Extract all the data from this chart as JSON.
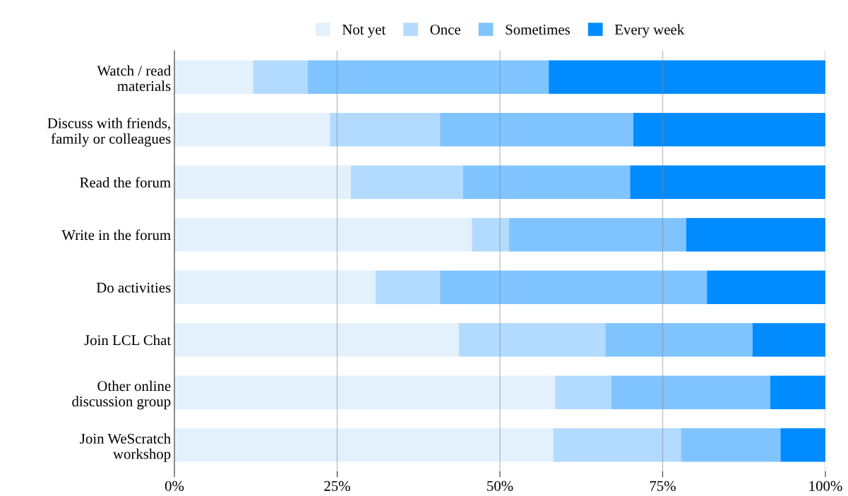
{
  "chart_data": {
    "type": "bar",
    "orientation": "horizontal",
    "stacked": true,
    "categories": [
      "Watch / read\nmaterials",
      "Discuss with friends,\nfamily or colleagues",
      "Read the forum",
      "Write in the forum",
      "Do activities",
      "Join LCL Chat",
      "Other online\ndiscussion group",
      "Join WeScratch\nworkshop"
    ],
    "series": [
      {
        "name": "Not yet",
        "color": "#e3f1fd",
        "values": [
          12.1,
          23.9,
          27.1,
          45.7,
          30.9,
          43.7,
          58.5,
          58.2
        ]
      },
      {
        "name": "Once",
        "color": "#b3dbff",
        "values": [
          8.4,
          16.9,
          17.2,
          5.7,
          9.9,
          22.5,
          8.6,
          19.6
        ]
      },
      {
        "name": "Sometimes",
        "color": "#80c4ff",
        "values": [
          37.0,
          29.7,
          25.7,
          27.2,
          41.0,
          22.6,
          24.4,
          15.3
        ]
      },
      {
        "name": "Every week",
        "color": "#008cff",
        "values": [
          42.5,
          29.5,
          30.0,
          21.4,
          18.2,
          11.2,
          8.5,
          6.9
        ]
      }
    ],
    "xlim": [
      0,
      100
    ],
    "xticks": [
      {
        "value": 0,
        "label": "0%"
      },
      {
        "value": 25,
        "label": "25%"
      },
      {
        "value": 50,
        "label": "50%"
      },
      {
        "value": 75,
        "label": "75%"
      },
      {
        "value": 100,
        "label": "100%"
      }
    ],
    "grid": "x",
    "legend": "top"
  }
}
